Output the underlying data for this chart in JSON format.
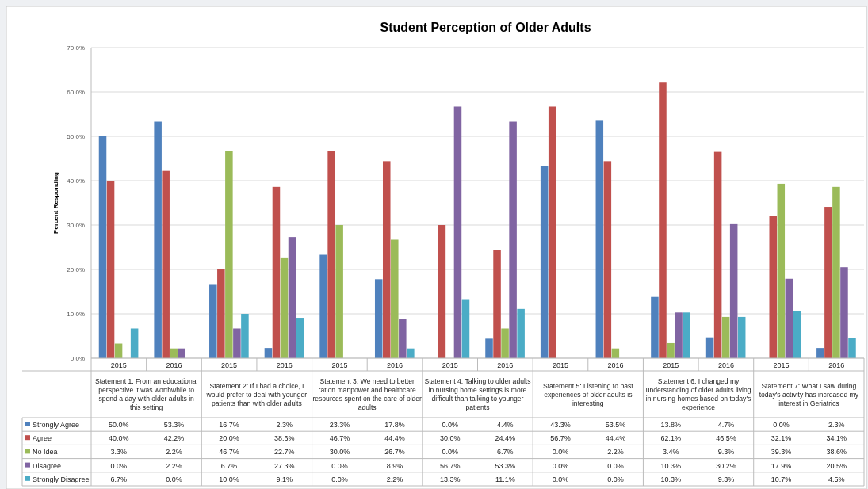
{
  "chart_data": {
    "type": "bar",
    "title": "Student Perception of Older Adults",
    "ylabel": "Percent Responding",
    "categories": [
      "2015",
      "2016",
      "2015",
      "2016",
      "2015",
      "2016",
      "2015",
      "2016",
      "2015",
      "2016",
      "2015",
      "2016",
      "2015",
      "2016"
    ],
    "annotations": [
      "Statement 1: From an educational perspective it was worthwhile to spend a day with older adults in this setting",
      "Statement 2: If I had a choice, I would prefer to deal with younger patients than with older adults",
      "Statement 3: We need to better ration manpower and healthcare resources spent on the care of older adults",
      "Statement 4: Talking to older adults in nursing home settings is more difficult than talking to younger patients",
      "Statement 5: Listening to past experiences of older adults is interesting",
      "Statement 6: I changed my understanding of older adults living in nursing homes based on today's experience",
      "Statement 7: What I saw during today's activity has increased my interest in Geriatrics"
    ],
    "series": [
      {
        "name": "Strongly Agree",
        "color": "#4f81bd",
        "values": [
          50.0,
          53.3,
          16.7,
          2.3,
          23.3,
          17.8,
          0.0,
          4.4,
          43.3,
          53.5,
          13.8,
          4.7,
          0.0,
          2.3
        ],
        "value_labels": [
          "50.0%",
          "53.3%",
          "16.7%",
          "2.3%",
          "23.3%",
          "17.8%",
          "0.0%",
          "4.4%",
          "43.3%",
          "53.5%",
          "13.8%",
          "4.7%",
          "0.0%",
          "2.3%"
        ]
      },
      {
        "name": "Agree",
        "color": "#c0504d",
        "values": [
          40.0,
          42.2,
          20.0,
          38.6,
          46.7,
          44.4,
          30.0,
          24.4,
          56.7,
          44.4,
          62.1,
          46.5,
          32.1,
          34.1
        ],
        "value_labels": [
          "40.0%",
          "42.2%",
          "20.0%",
          "38.6%",
          "46.7%",
          "44.4%",
          "30.0%",
          "24.4%",
          "56.7%",
          "44.4%",
          "62.1%",
          "46.5%",
          "32.1%",
          "34.1%"
        ]
      },
      {
        "name": "No Idea",
        "color": "#9bbb59",
        "values": [
          3.3,
          2.2,
          46.7,
          22.7,
          30.0,
          26.7,
          0.0,
          6.7,
          0.0,
          2.2,
          3.4,
          9.3,
          39.3,
          38.6
        ],
        "value_labels": [
          "3.3%",
          "2.2%",
          "46.7%",
          "22.7%",
          "30.0%",
          "26.7%",
          "0.0%",
          "6.7%",
          "0.0%",
          "2.2%",
          "3.4%",
          "9.3%",
          "39.3%",
          "38.6%"
        ]
      },
      {
        "name": "Disagree",
        "color": "#8064a2",
        "values": [
          0.0,
          2.2,
          6.7,
          27.3,
          0.0,
          8.9,
          56.7,
          53.3,
          0.0,
          0.0,
          10.3,
          30.2,
          17.9,
          20.5
        ],
        "value_labels": [
          "0.0%",
          "2.2%",
          "6.7%",
          "27.3%",
          "0.0%",
          "8.9%",
          "56.7%",
          "53.3%",
          "0.0%",
          "0.0%",
          "10.3%",
          "30.2%",
          "17.9%",
          "20.5%"
        ]
      },
      {
        "name": "Strongly Disagree",
        "color": "#4bacc6",
        "values": [
          6.7,
          0.0,
          10.0,
          9.1,
          0.0,
          2.2,
          13.3,
          11.1,
          0.0,
          0.0,
          10.3,
          9.3,
          10.7,
          4.5
        ],
        "value_labels": [
          "6.7%",
          "0.0%",
          "10.0%",
          "9.1%",
          "0.0%",
          "2.2%",
          "13.3%",
          "11.1%",
          "0.0%",
          "0.0%",
          "10.3%",
          "9.3%",
          "10.7%",
          "4.5%"
        ]
      }
    ],
    "ylim": [
      0,
      70
    ],
    "yticks": [
      {
        "value": 0,
        "label": "0.0%"
      },
      {
        "value": 10,
        "label": "10.0%"
      },
      {
        "value": 20,
        "label": "20.0%"
      },
      {
        "value": 30,
        "label": "30.0%"
      },
      {
        "value": 40,
        "label": "40.0%"
      },
      {
        "value": 50,
        "label": "50.0%"
      },
      {
        "value": 60,
        "label": "60.0%"
      },
      {
        "value": 70,
        "label": "70.0%"
      }
    ],
    "grid": "y",
    "legend": "bottom"
  }
}
